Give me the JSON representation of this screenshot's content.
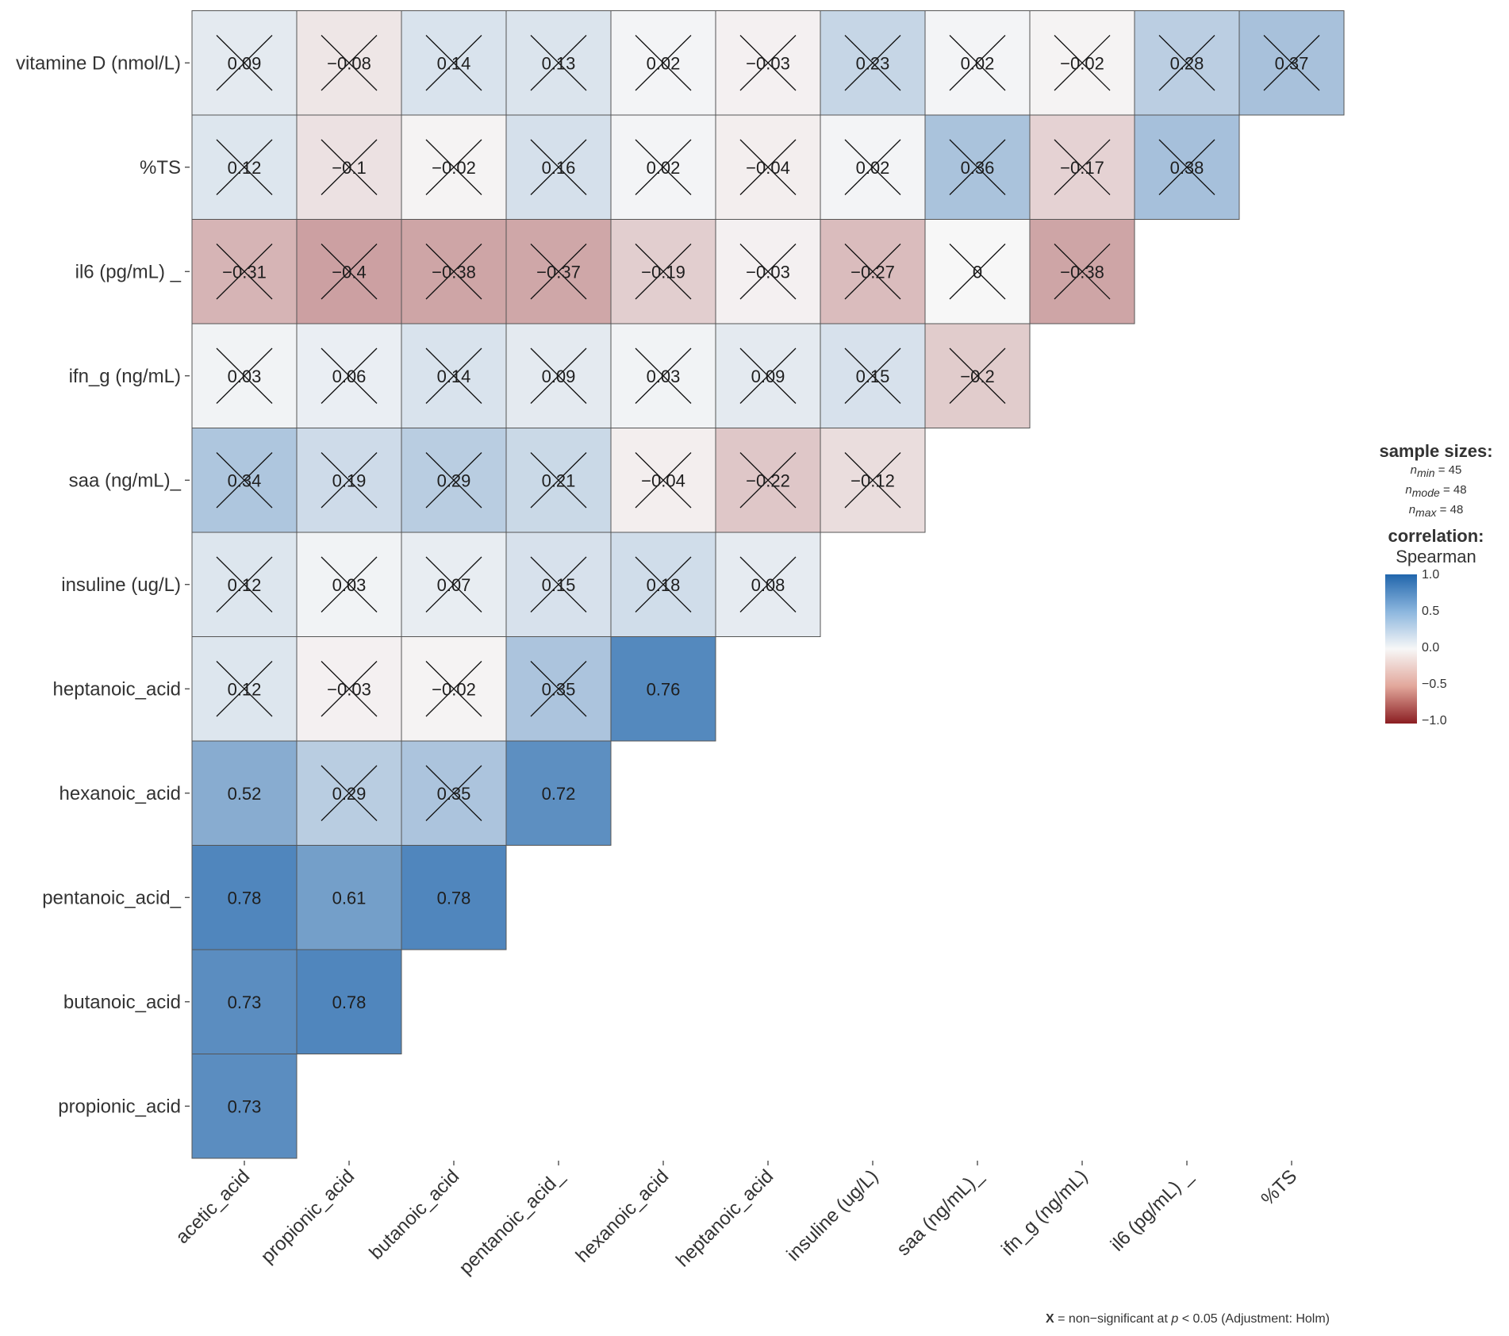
{
  "chart_data": {
    "type": "heatmap",
    "title": "",
    "x_labels": [
      "acetic_acid",
      "propionic_acid",
      "butanoic_acid",
      "pentanoic_acid_",
      "hexanoic_acid",
      "heptanoic_acid",
      "insuline (ug/L)",
      "saa (ng/mL)_",
      "ifn_g (ng/mL)",
      "il6 (pg/mL) _",
      "%TS"
    ],
    "y_labels": [
      "vitamine D (nmol/L)",
      "%TS",
      "il6 (pg/mL) _",
      "ifn_g (ng/mL)",
      "saa (ng/mL)_",
      "insuline (ug/L)",
      "heptanoic_acid",
      "hexanoic_acid",
      "pentanoic_acid_",
      "butanoic_acid",
      "propionic_acid"
    ],
    "rows": [
      {
        "values": [
          "0.09",
          "−0.08",
          "0.14",
          "0.13",
          "0.02",
          "−0.03",
          "0.23",
          "0.02",
          "−0.02",
          "0.28",
          "0.37"
        ],
        "crossed": [
          true,
          true,
          true,
          true,
          true,
          true,
          true,
          true,
          true,
          true,
          true
        ]
      },
      {
        "values": [
          "0.12",
          "−0.1",
          "−0.02",
          "0.16",
          "0.02",
          "−0.04",
          "0.02",
          "0.36",
          "−0.17",
          "0.38"
        ],
        "crossed": [
          true,
          true,
          true,
          true,
          true,
          true,
          true,
          true,
          true,
          true
        ]
      },
      {
        "values": [
          "−0.31",
          "−0.4",
          "−0.38",
          "−0.37",
          "−0.19",
          "−0.03",
          "−0.27",
          "0",
          "−0.38"
        ],
        "crossed": [
          true,
          true,
          true,
          true,
          true,
          true,
          true,
          true,
          true
        ]
      },
      {
        "values": [
          "0.03",
          "0.06",
          "0.14",
          "0.09",
          "0.03",
          "0.09",
          "0.15",
          "−0.2"
        ],
        "crossed": [
          true,
          true,
          true,
          true,
          true,
          true,
          true,
          true
        ]
      },
      {
        "values": [
          "0.34",
          "0.19",
          "0.29",
          "0.21",
          "−0.04",
          "−0.22",
          "−0.12"
        ],
        "crossed": [
          true,
          true,
          true,
          true,
          true,
          true,
          true
        ]
      },
      {
        "values": [
          "0.12",
          "0.03",
          "0.07",
          "0.15",
          "0.18",
          "0.08"
        ],
        "crossed": [
          true,
          true,
          true,
          true,
          true,
          true
        ]
      },
      {
        "values": [
          "0.12",
          "−0.03",
          "−0.02",
          "0.35",
          "0.76"
        ],
        "crossed": [
          true,
          true,
          true,
          true,
          false
        ]
      },
      {
        "values": [
          "0.52",
          "0.29",
          "0.35",
          "0.72"
        ],
        "crossed": [
          false,
          true,
          true,
          false
        ]
      },
      {
        "values": [
          "0.78",
          "0.61",
          "0.78"
        ],
        "crossed": [
          false,
          false,
          false
        ]
      },
      {
        "values": [
          "0.73",
          "0.78"
        ],
        "crossed": [
          false,
          false
        ]
      },
      {
        "values": [
          "0.73"
        ],
        "crossed": [
          false
        ]
      }
    ],
    "color_scale": {
      "min": -1.0,
      "max": 1.0,
      "low_color": "#8b1e22",
      "mid_color": "#f7f7f7",
      "high_color": "#2166ac"
    },
    "legend_position": "right"
  },
  "legend": {
    "sample_title": "sample sizes:",
    "n_min_label": "n",
    "n_min_sub": "min",
    "n_min_value": "= 45",
    "n_mode_label": "n",
    "n_mode_sub": "mode",
    "n_mode_value": "= 48",
    "n_max_label": "n",
    "n_max_sub": "max",
    "n_max_value": "= 48",
    "corr_title": "correlation:",
    "corr_method": "Spearman",
    "ticks": [
      "1.0",
      "0.5",
      "0.0",
      "−0.5",
      "−1.0"
    ]
  },
  "footnote": {
    "x_mark": "X",
    "text": "= non−significant at",
    "p": "p",
    "rest": "< 0.05 (Adjustment: Holm)"
  }
}
